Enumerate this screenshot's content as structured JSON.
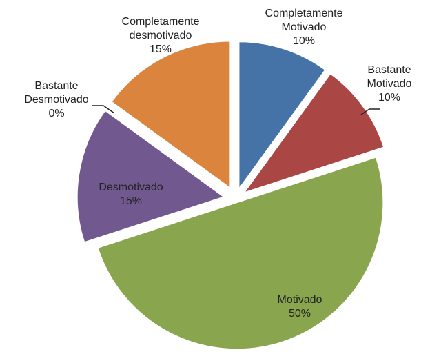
{
  "chart_data": {
    "type": "pie",
    "categories": [
      "Completamente Motivado",
      "Bastante Motivado",
      "Motivado",
      "Desmotivado",
      "Bastante Desmotivado",
      "Completamente desmotivado"
    ],
    "values": [
      10,
      10,
      50,
      15,
      0,
      15
    ],
    "value_labels": [
      "10%",
      "10%",
      "50%",
      "15%",
      "0%",
      "15%"
    ],
    "colors": [
      "#4572a7",
      "#aa4643",
      "#89a54e",
      "#71588f",
      "#4198af",
      "#db843d"
    ]
  }
}
